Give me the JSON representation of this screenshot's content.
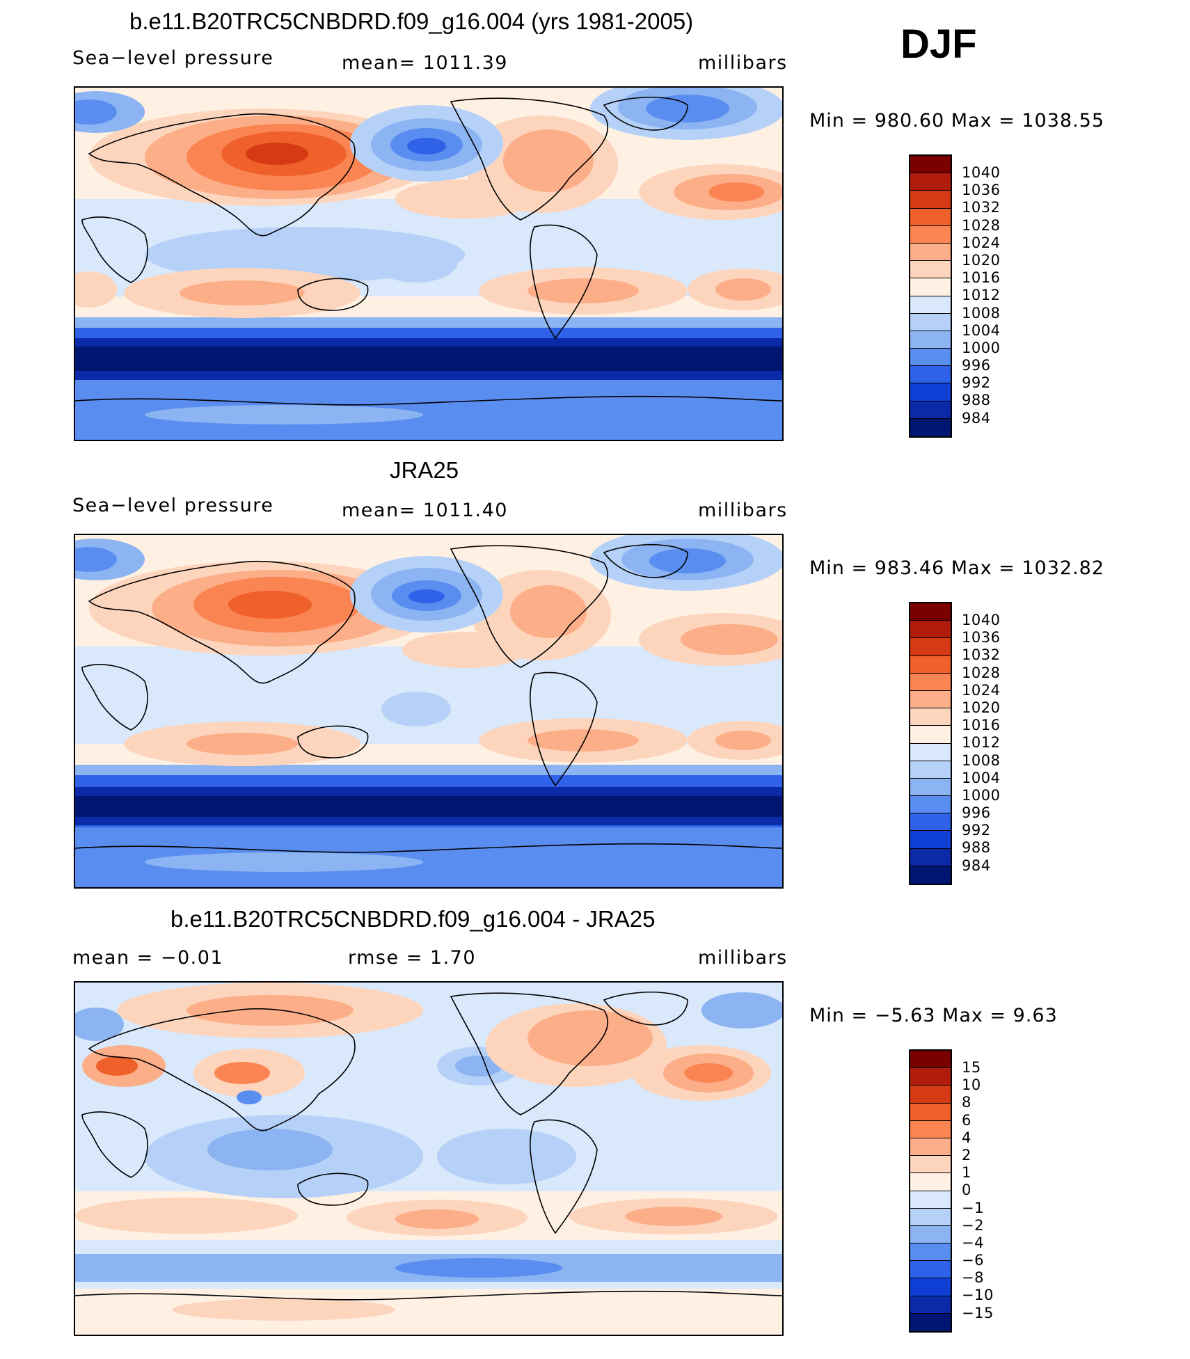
{
  "season": "DJF",
  "panels": [
    {
      "id": "model",
      "title": "b.e11.B20TRC5CNBDRD.f09_g16.004 (yrs 1981-2005)",
      "left_label": "Sea−level pressure",
      "center_label": "mean=  1011.39",
      "right_label": "millibars",
      "minmax": "Min  =  980.60  Max  =  1038.55",
      "colorbar_levels": [
        "1040",
        "1036",
        "1032",
        "1028",
        "1024",
        "1020",
        "1016",
        "1012",
        "1008",
        "1004",
        "1000",
        "996",
        "992",
        "988",
        "984"
      ]
    },
    {
      "id": "obs",
      "title": "JRA25",
      "left_label": "Sea−level pressure",
      "center_label": "mean=  1011.40",
      "right_label": "millibars",
      "minmax": "Min  =  983.46  Max  =  1032.82",
      "colorbar_levels": [
        "1040",
        "1036",
        "1032",
        "1028",
        "1024",
        "1020",
        "1016",
        "1012",
        "1008",
        "1004",
        "1000",
        "996",
        "992",
        "988",
        "984"
      ]
    },
    {
      "id": "diff",
      "title": "b.e11.B20TRC5CNBDRD.f09_g16.004 - JRA25",
      "left_label": "mean  =    −0.01",
      "center_label": "rmse  =     1.70",
      "right_label": "millibars",
      "minmax": "Min  =    −5.63  Max  =     9.63",
      "colorbar_levels": [
        "15",
        "10",
        "8",
        "6",
        "4",
        "2",
        "1",
        "0",
        "−1",
        "−2",
        "−4",
        "−6",
        "−8",
        "−10",
        "−15"
      ]
    }
  ],
  "colors": {
    "palette": [
      "#7a0000",
      "#b01d0d",
      "#d63a14",
      "#f0602a",
      "#fa8552",
      "#fcae88",
      "#fdd5bd",
      "#fef1e4",
      "#d9e8fb",
      "#b5d1f7",
      "#8cb4f2",
      "#5a8df0",
      "#2f62e8",
      "#0f3fd4",
      "#0a2aa8",
      "#001670"
    ]
  }
}
